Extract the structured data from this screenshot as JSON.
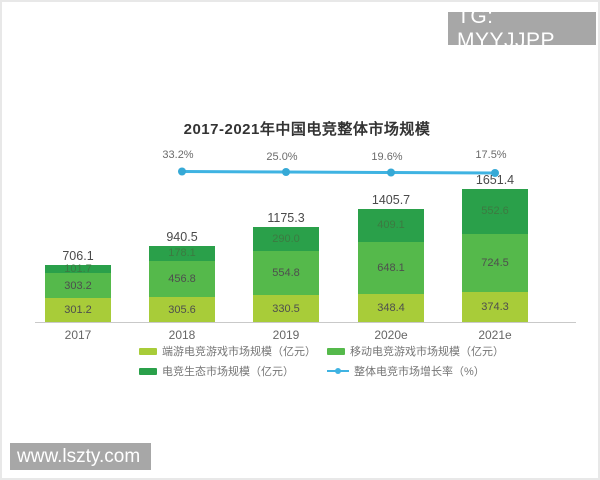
{
  "watermarks": {
    "telegram": "TG: MYYJJPP",
    "website": "www.lszty.com"
  },
  "chart_data": {
    "type": "bar",
    "variant": "stacked-column-with-line",
    "title": "2017-2021年中国电竞整体市场规模",
    "categories": [
      "2017",
      "2018",
      "2019",
      "2020e",
      "2021e"
    ],
    "series": [
      {
        "name": "端游电竞游戏市场规模（亿元）",
        "color": "#a8cc39",
        "values": [
          301.2,
          305.6,
          330.5,
          348.4,
          374.3
        ]
      },
      {
        "name": "移动电竞游戏市场规模（亿元）",
        "color": "#55b94b",
        "values": [
          303.2,
          456.8,
          554.8,
          648.1,
          724.5
        ]
      },
      {
        "name": "电竞生态市场规模（亿元）",
        "color": "#2aa04a",
        "values": [
          101.7,
          178.1,
          290.0,
          409.1,
          552.6
        ]
      }
    ],
    "totals": [
      706.1,
      940.5,
      1175.3,
      1405.7,
      1651.4
    ],
    "line_series": {
      "name": "整体电竞市场增长率（%）",
      "color": "#3fb3e2",
      "categories": [
        "2018",
        "2019",
        "2020e",
        "2021e"
      ],
      "values": [
        33.2,
        25.0,
        19.6,
        17.5
      ]
    },
    "legend_position": "bottom",
    "grid": false,
    "ylabel": "",
    "xlabel": ""
  }
}
